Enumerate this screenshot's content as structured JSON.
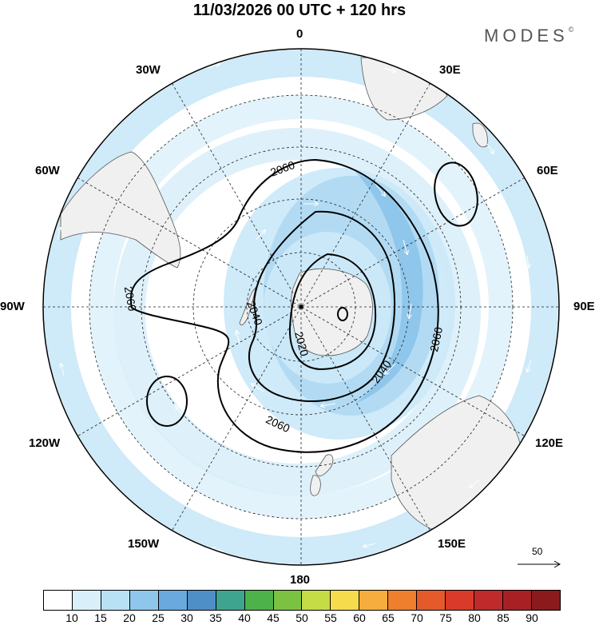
{
  "header": {
    "title": "11/03/2026  00 UTC  + 120 hrs",
    "brand": "MODES",
    "brand_mark": "©"
  },
  "map": {
    "longitude_labels": {
      "n": "0",
      "e30": "30E",
      "e60": "60E",
      "e90": "90E",
      "e120": "120E",
      "e150": "150E",
      "s": "180",
      "w150": "150W",
      "w120": "120W",
      "w90": "90W",
      "w60": "60W",
      "w30": "30W"
    },
    "contour_labels": [
      "2060",
      "2060",
      "2040",
      "2020",
      "2040",
      "2060",
      "2060"
    ],
    "wind_reference": "50",
    "colors": {
      "land": "#f0f0f0",
      "wind_light": "#cce9f8",
      "wind_mid": "#9ed1f0",
      "wind_strong": "#72b4e3",
      "contour": "#000000"
    }
  },
  "colorbar": {
    "labels": [
      "10",
      "15",
      "20",
      "25",
      "30",
      "35",
      "40",
      "45",
      "50",
      "55",
      "60",
      "65",
      "70",
      "75",
      "80",
      "85",
      "90"
    ],
    "colors": [
      "#ffffff",
      "#d9f0fb",
      "#b8e1f5",
      "#8fc7ec",
      "#6aa9dd",
      "#4f8fc8",
      "#3fa48f",
      "#4db24a",
      "#7cc242",
      "#c6dc46",
      "#f6dc4c",
      "#f6ad3e",
      "#ef7f2c",
      "#e55a2a",
      "#d93a2a",
      "#c02a2a",
      "#a82024",
      "#8b1a1d"
    ]
  }
}
